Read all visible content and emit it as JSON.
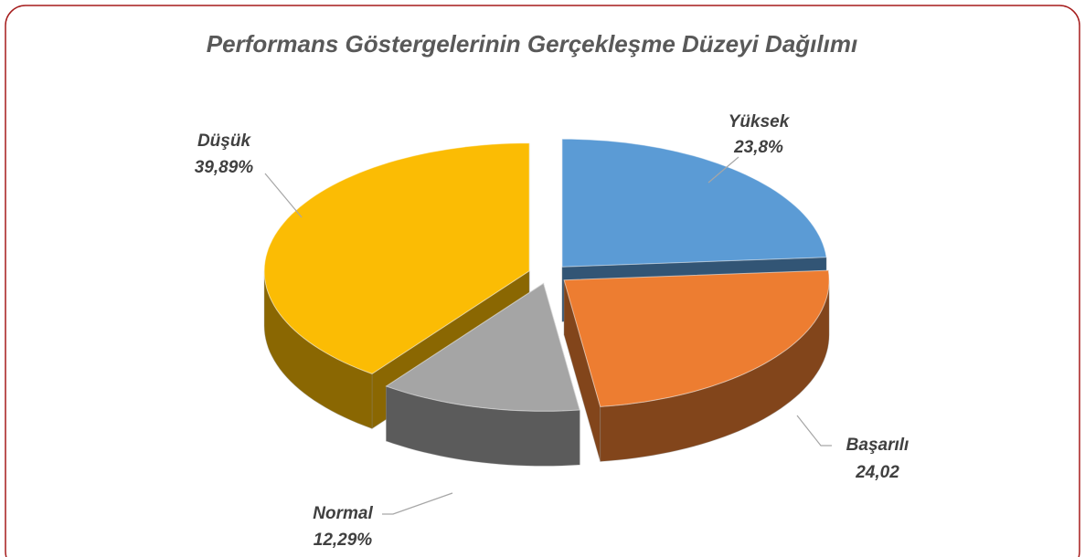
{
  "chart_data": {
    "type": "pie",
    "title": "Performans Göstergelerinin Gerçekleşme Düzeyi Dağılımı",
    "categories": [
      "Yüksek",
      "Başarılı",
      "Normal",
      "Düşük"
    ],
    "values": [
      23.8,
      24.02,
      12.29,
      39.89
    ],
    "value_labels": [
      "23,8%",
      "24,02",
      "12,29%",
      "39,89%"
    ],
    "colors": [
      "#5b9bd5",
      "#ed7d31",
      "#a5a5a5",
      "#fbbc04"
    ]
  }
}
